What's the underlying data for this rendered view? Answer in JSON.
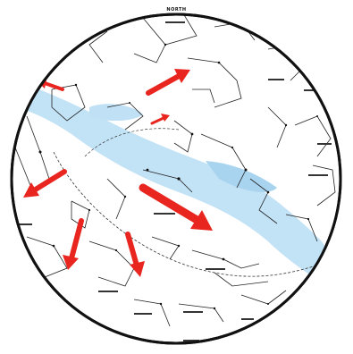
{
  "map": {
    "top_label": "NORTH",
    "background": "#ffffff",
    "milky_way_color": "#bfe0f5",
    "arrow_color": "#e8251f",
    "line_color": "#222222",
    "legend": ""
  }
}
